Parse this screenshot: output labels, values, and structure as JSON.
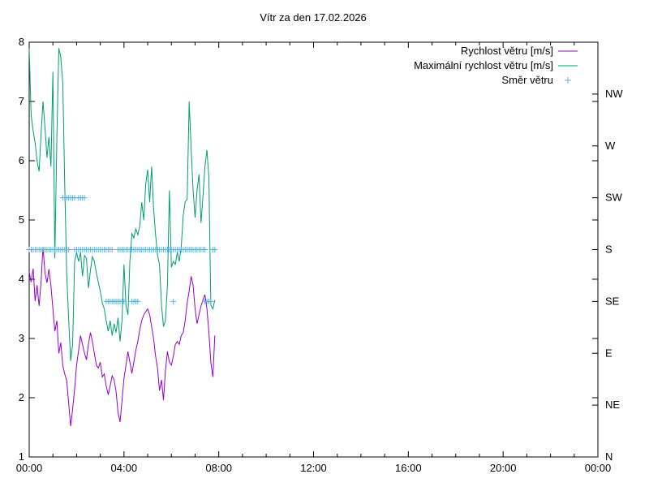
{
  "title": "Vítr za den 17.02.2026",
  "colors": {
    "wind_speed": "#9400d3",
    "max_wind_speed": "#009e73",
    "direction_marker": "#56b4e9",
    "axis": "#000000",
    "background": "#ffffff"
  },
  "legend": {
    "items": [
      {
        "label": "Rychlost větru [m/s]",
        "series": "wind_speed",
        "sample": "line"
      },
      {
        "label": "Maximální rychlost větru [m/s]",
        "series": "max_wind_speed",
        "sample": "line"
      },
      {
        "label": "Směr větru",
        "series": "direction_marker",
        "sample": "plus-marker"
      }
    ]
  },
  "chart_data": {
    "type": "line",
    "title": "Vítr za den 17.02.2026",
    "xlabel": "",
    "ylabel": "",
    "x_unit": "minutes_since_midnight",
    "xlim_minutes": [
      0,
      1440
    ],
    "ylim": [
      1,
      8
    ],
    "grid": false,
    "legend_position": "top-right-inside",
    "x_major_ticks": [
      {
        "minute": 0,
        "label": "00:00"
      },
      {
        "minute": 240,
        "label": "04:00"
      },
      {
        "minute": 480,
        "label": "08:00"
      },
      {
        "minute": 720,
        "label": "12:00"
      },
      {
        "minute": 960,
        "label": "16:00"
      },
      {
        "minute": 1200,
        "label": "20:00"
      },
      {
        "minute": 1440,
        "label": "00:00"
      }
    ],
    "x_minor_tick_every_minutes": 60,
    "y_ticks": [
      1,
      2,
      3,
      4,
      5,
      6,
      7,
      8
    ],
    "y2_direction_ticks": [
      {
        "label": "N",
        "value": 1.0
      },
      {
        "label": "NE",
        "value": 1.875
      },
      {
        "label": "E",
        "value": 2.75
      },
      {
        "label": "SE",
        "value": 3.625
      },
      {
        "label": "S",
        "value": 4.5
      },
      {
        "label": "SW",
        "value": 5.375
      },
      {
        "label": "W",
        "value": 6.25
      },
      {
        "label": "NW",
        "value": 7.125
      }
    ],
    "sample_step_minutes": 5,
    "series": [
      {
        "name": "Rychlost větru [m/s]",
        "key": "wind_speed",
        "start_minute": 0,
        "values": [
          4.12,
          3.95,
          4.18,
          3.63,
          3.9,
          3.55,
          3.95,
          4.55,
          4.1,
          3.94,
          4.17,
          3.89,
          3.5,
          3.12,
          3.3,
          2.75,
          2.93,
          2.55,
          2.4,
          2.29,
          1.9,
          1.52,
          1.8,
          2.15,
          2.55,
          2.8,
          3.05,
          2.9,
          2.75,
          2.64,
          2.9,
          3.1,
          2.95,
          2.75,
          2.55,
          2.5,
          2.6,
          2.35,
          2.4,
          2.2,
          2.05,
          2.2,
          2.37,
          2.3,
          2.1,
          1.75,
          1.59,
          1.95,
          2.32,
          2.55,
          2.78,
          2.6,
          2.41,
          2.6,
          2.8,
          2.95,
          3.15,
          3.3,
          3.4,
          3.45,
          3.5,
          3.4,
          3.2,
          3.0,
          2.7,
          2.5,
          2.12,
          2.3,
          1.96,
          2.45,
          2.78,
          2.6,
          2.55,
          2.7,
          2.9,
          2.95,
          2.9,
          3.05,
          3.1,
          3.3,
          3.6,
          3.8,
          4.05,
          3.9,
          3.5,
          3.25,
          3.4,
          3.55,
          3.65,
          3.74,
          3.5,
          3.1,
          2.6,
          2.35,
          3.05
        ]
      },
      {
        "name": "Maximální rychlost větru [m/s]",
        "key": "max_wind_speed",
        "start_minute": 0,
        "values": [
          7.9,
          6.77,
          6.5,
          6.3,
          6.0,
          5.82,
          6.45,
          7.0,
          6.55,
          6.05,
          6.4,
          5.9,
          7.5,
          4.35,
          6.4,
          7.9,
          7.75,
          7.3,
          5.6,
          4.1,
          3.3,
          2.62,
          2.9,
          4.3,
          4.45,
          4.3,
          4.45,
          4.05,
          4.4,
          4.35,
          3.85,
          4.15,
          4.38,
          4.3,
          4.1,
          3.95,
          3.8,
          3.6,
          3.5,
          3.3,
          3.12,
          3.3,
          3.05,
          3.25,
          3.1,
          3.35,
          2.95,
          3.3,
          4.25,
          3.55,
          3.4,
          4.3,
          4.77,
          4.7,
          4.85,
          4.75,
          4.9,
          5.3,
          5.0,
          5.6,
          5.85,
          5.3,
          5.9,
          5.2,
          4.75,
          4.4,
          4.25,
          3.56,
          3.2,
          3.3,
          3.9,
          5.5,
          4.2,
          4.3,
          4.25,
          4.45,
          4.3,
          4.55,
          5.08,
          5.31,
          5.35,
          7.0,
          6.2,
          5.5,
          5.04,
          5.5,
          5.77,
          4.95,
          5.4,
          5.9,
          6.18,
          5.7,
          3.56,
          3.5,
          3.65
        ]
      }
    ],
    "direction_markers": {
      "S": {
        "value": 4.5,
        "minutes": [
          0,
          5,
          10,
          15,
          20,
          25,
          30,
          35,
          40,
          45,
          50,
          55,
          60,
          65,
          70,
          75,
          80,
          85,
          90,
          95,
          100,
          115,
          120,
          125,
          130,
          135,
          140,
          145,
          150,
          155,
          160,
          165,
          170,
          175,
          180,
          185,
          190,
          195,
          200,
          205,
          210,
          225,
          230,
          235,
          240,
          245,
          250,
          255,
          260,
          265,
          270,
          275,
          280,
          285,
          290,
          295,
          300,
          305,
          310,
          315,
          320,
          325,
          330,
          335,
          340,
          345,
          350,
          355,
          360,
          365,
          370,
          375,
          380,
          385,
          390,
          395,
          400,
          405,
          410,
          415,
          420,
          425,
          430,
          435,
          440,
          445,
          465,
          470
        ]
      },
      "SW": {
        "value": 5.375,
        "minutes": [
          85,
          90,
          95,
          100,
          105,
          110,
          115,
          125,
          130,
          135,
          140
        ]
      },
      "SE": {
        "value": 3.625,
        "minutes": [
          195,
          200,
          205,
          210,
          215,
          220,
          225,
          230,
          235,
          240,
          260,
          265,
          270,
          275,
          365,
          445,
          450,
          455,
          460
        ]
      }
    }
  }
}
